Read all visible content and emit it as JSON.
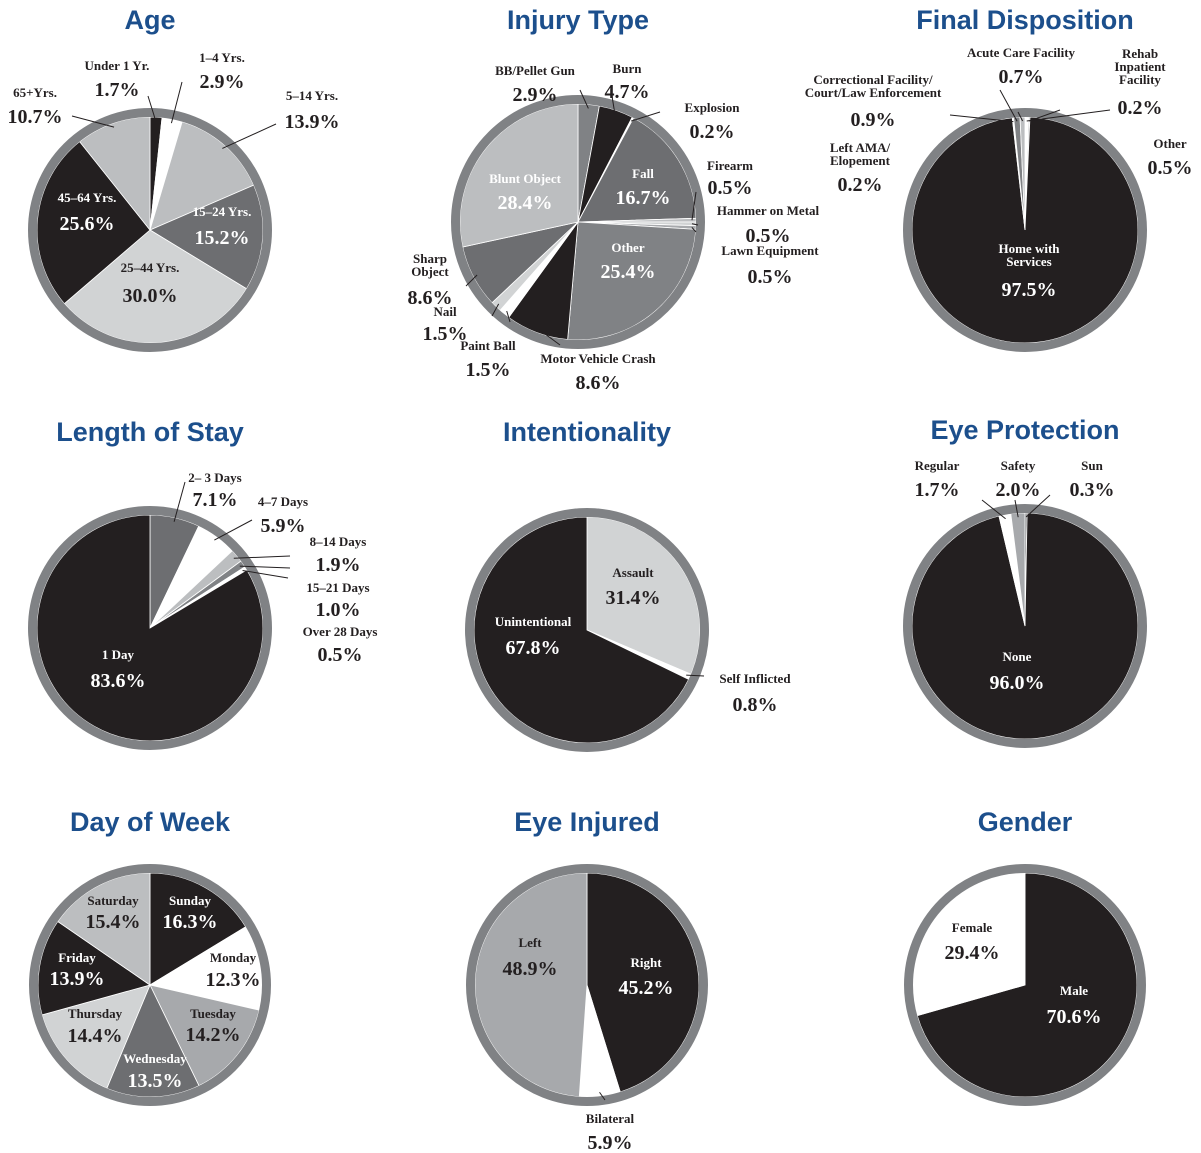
{
  "chart_data": [
    {
      "type": "pie",
      "title": "Age",
      "categories": [
        "Under 1 Yr.",
        "1–4 Yrs.",
        "5–14 Yrs.",
        "15–24 Yrs.",
        "25–44 Yrs.",
        "45–64 Yrs.",
        "65+Yrs."
      ],
      "values": [
        1.7,
        2.9,
        13.9,
        15.2,
        30.0,
        25.6,
        10.7
      ],
      "value_labels": [
        "1.7%",
        "2.9%",
        "13.9%",
        "15.2%",
        "30.0%",
        "25.6%",
        "10.7%"
      ],
      "colors": [
        "#231f20",
        "#ffffff",
        "#bcbec0",
        "#6d6e71",
        "#d1d3d4",
        "#231f20",
        "#bcbec0"
      ]
    },
    {
      "type": "pie",
      "title": "Injury Type",
      "categories": [
        "BB/Pellet Gun",
        "Burn",
        "Explosion",
        "Fall",
        "Firearm",
        "Hammer on Metal",
        "Lawn Equipment",
        "Other",
        "Motor Vehicle Crash",
        "Paint Ball",
        "Nail",
        "Sharp\nObject",
        "Blunt Object"
      ],
      "values": [
        2.9,
        4.7,
        0.2,
        16.7,
        0.5,
        0.5,
        0.5,
        25.4,
        8.6,
        1.5,
        1.5,
        8.6,
        28.4
      ],
      "value_labels": [
        "2.9%",
        "4.7%",
        "0.2%",
        "16.7%",
        "0.5%",
        "0.5%",
        "0.5%",
        "25.4%",
        "8.6%",
        "1.5%",
        "1.5%",
        "8.6%",
        "28.4%"
      ],
      "colors": [
        "#808285",
        "#231f20",
        "#ffffff",
        "#6d6e71",
        "#bcbec0",
        "#d1d3d4",
        "#a7a9ac",
        "#808285",
        "#231f20",
        "#ffffff",
        "#d1d3d4",
        "#6d6e71",
        "#bcbec0"
      ]
    },
    {
      "type": "pie",
      "title": "Final Disposition",
      "categories": [
        "Other",
        "Rehab\nInpatient\nFacility",
        "Home with\nServices",
        "Left AMA/\nElopement",
        "Correctional Facility/\nCourt/Law Enforcement",
        "Acute Care Facility"
      ],
      "values": [
        0.5,
        0.2,
        97.5,
        0.2,
        0.9,
        0.7
      ],
      "value_labels": [
        "0.5%",
        "0.2%",
        "97.5%",
        "0.2%",
        "0.9%",
        "0.7%"
      ],
      "colors": [
        "#ffffff",
        "#bcbec0",
        "#231f20",
        "#ffffff",
        "#808285",
        "#bcbec0"
      ]
    },
    {
      "type": "pie",
      "title": "Length of Stay",
      "categories": [
        "2– 3 Days",
        "4–7 Days",
        "8–14 Days",
        "15–21 Days",
        "Over 28 Days",
        "1 Day"
      ],
      "values": [
        7.1,
        5.9,
        1.9,
        1.0,
        0.5,
        83.6
      ],
      "value_labels": [
        "7.1%",
        "5.9%",
        "1.9%",
        "1.0%",
        "0.5%",
        "83.6%"
      ],
      "colors": [
        "#6d6e71",
        "#ffffff",
        "#bcbec0",
        "#808285",
        "#ffffff",
        "#231f20"
      ]
    },
    {
      "type": "pie",
      "title": "Intentionality",
      "categories": [
        "Assault",
        "Self Inflicted",
        "Unintentional"
      ],
      "values": [
        31.4,
        0.8,
        67.8
      ],
      "value_labels": [
        "31.4%",
        "0.8%",
        "67.8%"
      ],
      "colors": [
        "#d1d3d4",
        "#ffffff",
        "#231f20"
      ]
    },
    {
      "type": "pie",
      "title": "Eye Protection",
      "categories": [
        "Sun",
        "None",
        "Regular",
        "Safety"
      ],
      "values": [
        0.3,
        96.0,
        1.7,
        2.0
      ],
      "value_labels": [
        "0.3%",
        "96.0%",
        "1.7%",
        "2.0%"
      ],
      "colors": [
        "#6d6e71",
        "#231f20",
        "#ffffff",
        "#a7a9ac"
      ]
    },
    {
      "type": "pie",
      "title": "Day of Week",
      "categories": [
        "Sunday",
        "Monday",
        "Tuesday",
        "Wednesday",
        "Thursday",
        "Friday",
        "Saturday"
      ],
      "values": [
        16.3,
        12.3,
        14.2,
        13.5,
        14.4,
        13.9,
        15.4
      ],
      "value_labels": [
        "16.3%",
        "12.3%",
        "14.2%",
        "13.5%",
        "14.4%",
        "13.9%",
        "15.4%"
      ],
      "colors": [
        "#231f20",
        "#ffffff",
        "#a7a9ac",
        "#6d6e71",
        "#d1d3d4",
        "#231f20",
        "#bcbec0"
      ]
    },
    {
      "type": "pie",
      "title": "Eye Injured",
      "categories": [
        "Right",
        "Bilateral",
        "Left"
      ],
      "values": [
        45.2,
        5.9,
        48.9
      ],
      "value_labels": [
        "45.2%",
        "5.9%",
        "48.9%"
      ],
      "colors": [
        "#231f20",
        "#ffffff",
        "#a7a9ac"
      ]
    },
    {
      "type": "pie",
      "title": "Gender",
      "categories": [
        "Male",
        "Female"
      ],
      "values": [
        70.6,
        29.4
      ],
      "value_labels": [
        "70.6%",
        "29.4%"
      ],
      "colors": [
        "#231f20",
        "#ffffff"
      ]
    }
  ]
}
